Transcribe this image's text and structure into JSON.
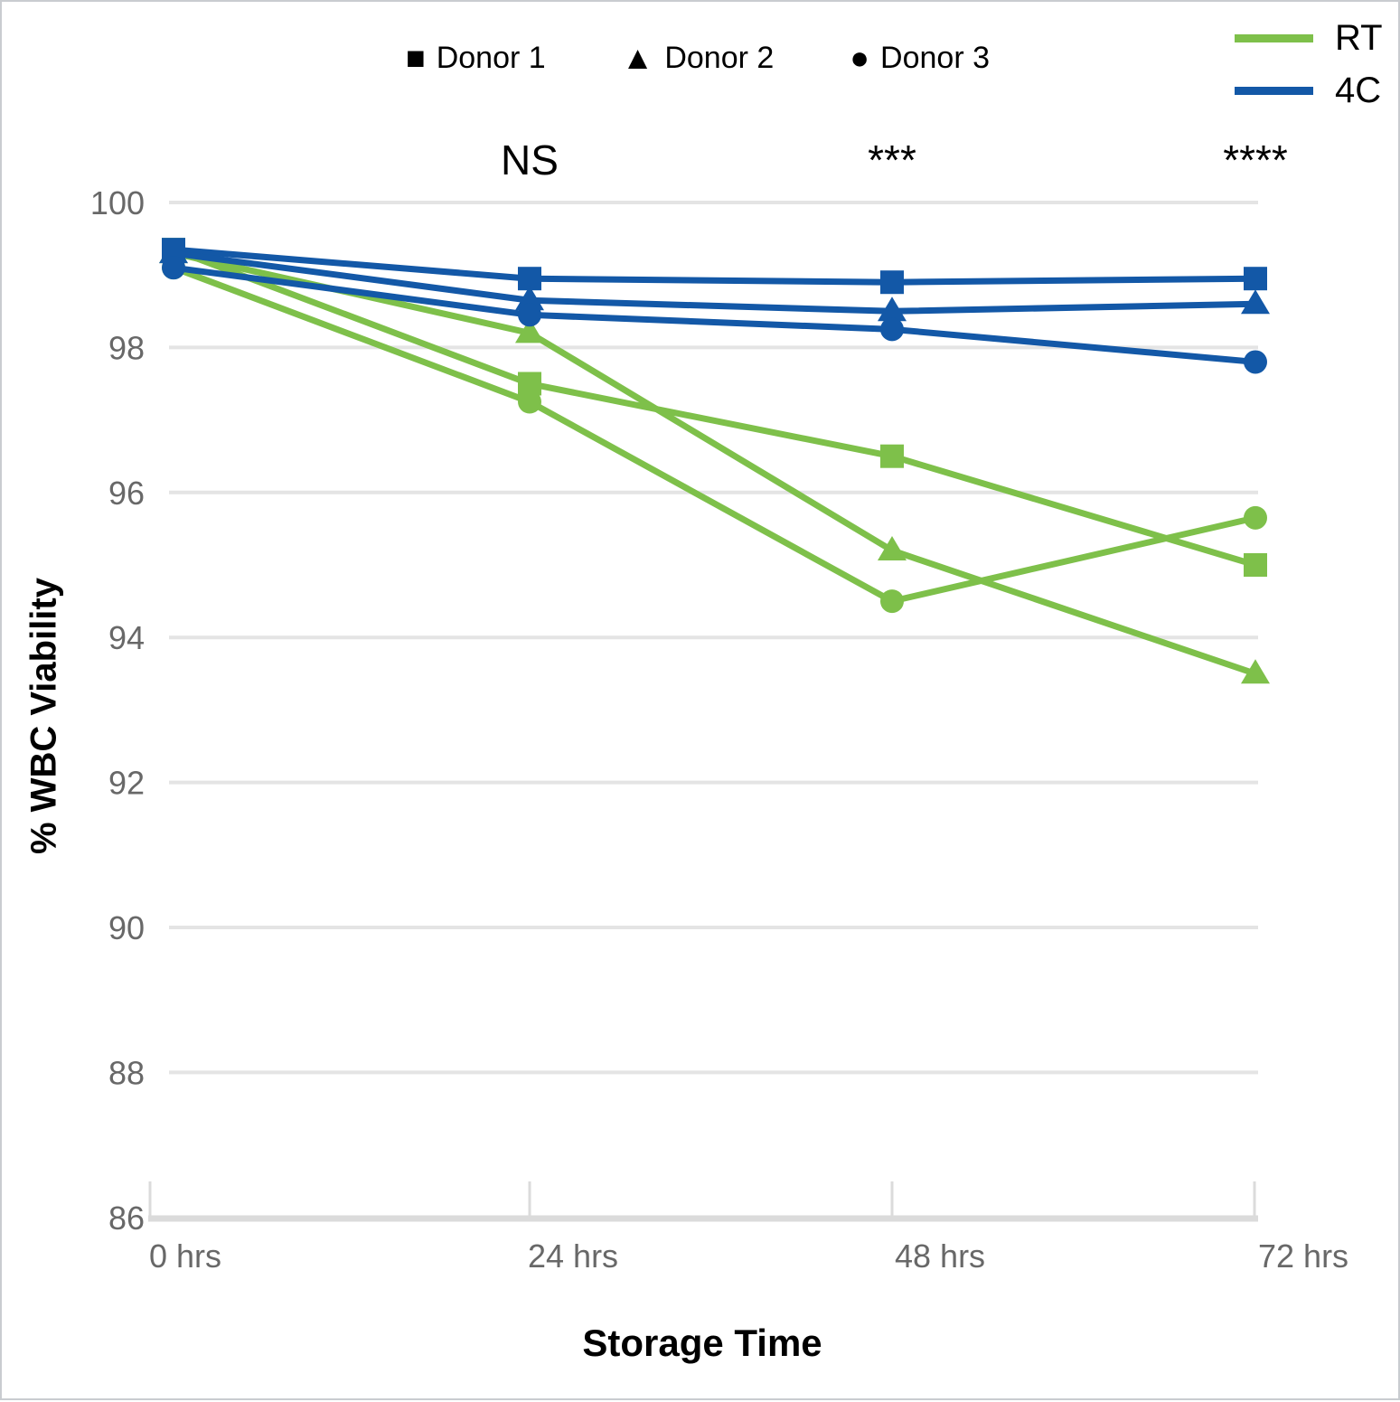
{
  "chart_data": {
    "type": "line",
    "title": "",
    "xlabel": "Storage Time",
    "ylabel": "% WBC Viability",
    "x_categories": [
      "0 hrs",
      "24 hrs",
      "48 hrs",
      "72 hrs"
    ],
    "ylim": [
      86,
      100
    ],
    "yticks": [
      86,
      88,
      90,
      92,
      94,
      96,
      98,
      100
    ],
    "grid": "horizontal",
    "legend_position": "top",
    "annotations": [
      {
        "category": "24 hrs",
        "text": "NS"
      },
      {
        "category": "48 hrs",
        "text": "***"
      },
      {
        "category": "72 hrs",
        "text": "****"
      }
    ],
    "series": [
      {
        "name": "RT Donor 1",
        "group": "RT",
        "marker": "square",
        "color": "#7EC04A",
        "values": [
          99.35,
          97.5,
          96.5,
          95.0
        ]
      },
      {
        "name": "RT Donor 2",
        "group": "RT",
        "marker": "triangle",
        "color": "#7EC04A",
        "values": [
          99.3,
          98.2,
          95.2,
          93.5
        ]
      },
      {
        "name": "RT Donor 3",
        "group": "RT",
        "marker": "circle",
        "color": "#7EC04A",
        "values": [
          99.1,
          97.25,
          94.5,
          95.65
        ]
      },
      {
        "name": "4C Donor 1",
        "group": "4C",
        "marker": "square",
        "color": "#1358A7",
        "values": [
          99.35,
          98.95,
          98.9,
          98.95
        ]
      },
      {
        "name": "4C Donor 2",
        "group": "4C",
        "marker": "triangle",
        "color": "#1358A7",
        "values": [
          99.3,
          98.65,
          98.5,
          98.6
        ]
      },
      {
        "name": "4C Donor 3",
        "group": "4C",
        "marker": "circle",
        "color": "#1358A7",
        "values": [
          99.1,
          98.45,
          98.25,
          97.8
        ]
      }
    ],
    "marker_legend": [
      {
        "marker": "square",
        "label": "Donor 1"
      },
      {
        "marker": "triangle",
        "label": "Donor 2"
      },
      {
        "marker": "circle",
        "label": "Donor 3"
      }
    ],
    "color_legend": [
      {
        "label": "RT",
        "color": "#7EC04A"
      },
      {
        "label": "4C",
        "color": "#1358A7"
      }
    ],
    "colors": {
      "rt": "#7EC04A",
      "cold": "#1358A7",
      "gridline": "#E4E4E4",
      "axis_line": "#DBDBDB",
      "tick_text": "#686868"
    }
  }
}
